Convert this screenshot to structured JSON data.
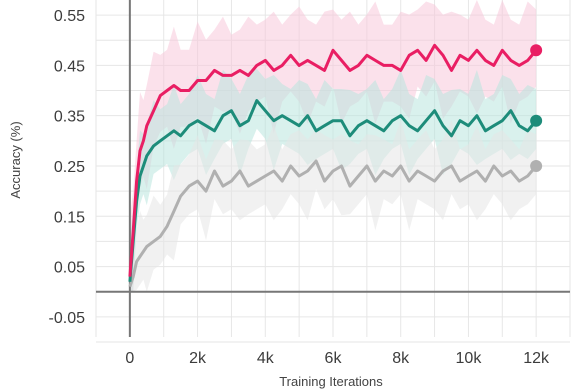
{
  "chart_data": {
    "type": "line",
    "title": "",
    "xlabel": "Training Iterations",
    "ylabel": "Accuracy (%)",
    "xlim": [
      -1000,
      13000
    ],
    "ylim": [
      -0.09,
      0.58
    ],
    "xticks": [
      0,
      2000,
      4000,
      6000,
      8000,
      10000,
      12000
    ],
    "xtick_labels": [
      "0",
      "2k",
      "4k",
      "6k",
      "8k",
      "10k",
      "12k"
    ],
    "yticks": [
      -0.05,
      0.05,
      0.15,
      0.25,
      0.35,
      0.45,
      0.55
    ],
    "ytick_labels": [
      "-0.05",
      "0.05",
      "0.15",
      "0.25",
      "0.35",
      "0.45",
      "0.55"
    ],
    "grid": true,
    "legend": "none",
    "x": [
      0,
      100,
      200,
      300,
      400,
      500,
      700,
      900,
      1100,
      1300,
      1500,
      1750,
      2000,
      2250,
      2500,
      2750,
      3000,
      3250,
      3500,
      3750,
      4000,
      4250,
      4500,
      4750,
      5000,
      5250,
      5500,
      5750,
      6000,
      6250,
      6500,
      6750,
      7000,
      7250,
      7500,
      7750,
      8000,
      8250,
      8500,
      8750,
      9000,
      9250,
      9500,
      9750,
      10000,
      10250,
      10500,
      10750,
      11000,
      11250,
      11500,
      11750,
      12000
    ],
    "series": [
      {
        "color": "#e91e63",
        "band_color": "#f8c8da",
        "values": [
          0.03,
          0.12,
          0.22,
          0.28,
          0.3,
          0.33,
          0.36,
          0.39,
          0.4,
          0.41,
          0.4,
          0.4,
          0.42,
          0.42,
          0.44,
          0.43,
          0.43,
          0.44,
          0.43,
          0.45,
          0.46,
          0.44,
          0.45,
          0.47,
          0.45,
          0.46,
          0.45,
          0.44,
          0.48,
          0.46,
          0.44,
          0.45,
          0.47,
          0.46,
          0.45,
          0.45,
          0.44,
          0.47,
          0.48,
          0.46,
          0.49,
          0.47,
          0.44,
          0.47,
          0.46,
          0.48,
          0.46,
          0.45,
          0.48,
          0.46,
          0.45,
          0.46,
          0.48
        ]
      },
      {
        "color": "#1d8c7a",
        "band_color": "#b9e6df",
        "values": [
          0.02,
          0.1,
          0.18,
          0.23,
          0.25,
          0.27,
          0.29,
          0.3,
          0.31,
          0.32,
          0.31,
          0.33,
          0.34,
          0.33,
          0.32,
          0.35,
          0.36,
          0.33,
          0.34,
          0.38,
          0.36,
          0.34,
          0.35,
          0.34,
          0.33,
          0.35,
          0.32,
          0.33,
          0.34,
          0.34,
          0.31,
          0.33,
          0.34,
          0.33,
          0.32,
          0.34,
          0.35,
          0.33,
          0.32,
          0.34,
          0.36,
          0.33,
          0.31,
          0.34,
          0.33,
          0.35,
          0.32,
          0.33,
          0.34,
          0.36,
          0.33,
          0.32,
          0.34
        ]
      },
      {
        "color": "#b0b0b0",
        "band_color": "#e6e6e6",
        "values": [
          0.01,
          0.03,
          0.06,
          0.07,
          0.08,
          0.09,
          0.1,
          0.11,
          0.13,
          0.16,
          0.19,
          0.21,
          0.22,
          0.2,
          0.24,
          0.21,
          0.22,
          0.24,
          0.21,
          0.22,
          0.23,
          0.24,
          0.22,
          0.25,
          0.23,
          0.24,
          0.26,
          0.22,
          0.24,
          0.25,
          0.21,
          0.23,
          0.25,
          0.22,
          0.24,
          0.23,
          0.25,
          0.22,
          0.24,
          0.23,
          0.22,
          0.24,
          0.25,
          0.22,
          0.23,
          0.24,
          0.22,
          0.25,
          0.23,
          0.24,
          0.22,
          0.23,
          0.25
        ]
      }
    ]
  }
}
